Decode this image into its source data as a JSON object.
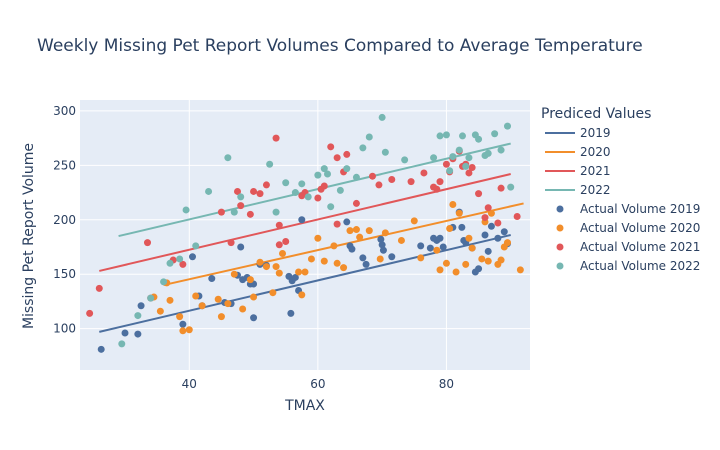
{
  "chart_data": {
    "type": "scatter",
    "title": "Weekly Missing Pet Report Volumes Compared to Average Temperature",
    "xlabel": "TMAX",
    "ylabel": "Missing Pet Report Volume",
    "xlim": [
      23,
      93
    ],
    "ylim": [
      62,
      310
    ],
    "xticks": [
      40,
      60,
      80
    ],
    "yticks": [
      100,
      150,
      200,
      250,
      300
    ],
    "grid": true,
    "legend": {
      "title": "Prediced Values",
      "position": "right"
    },
    "colors": {
      "2019": "#4c6f9f",
      "2020": "#f28e2b",
      "2021": "#e15759",
      "2022": "#76b7b2",
      "plot_bg": "#e5ecf6",
      "grid": "#ffffff",
      "text": "#2a3f5f"
    },
    "series": [
      {
        "name": "2019",
        "kind": "line",
        "color": "#4c6f9f",
        "x": [
          26,
          90
        ],
        "y": [
          97,
          186
        ]
      },
      {
        "name": "2020",
        "kind": "line",
        "color": "#f28e2b",
        "x": [
          36,
          92
        ],
        "y": [
          140,
          215
        ]
      },
      {
        "name": "2021",
        "kind": "line",
        "color": "#e15759",
        "x": [
          26,
          90
        ],
        "y": [
          153,
          242
        ]
      },
      {
        "name": "2022",
        "kind": "line",
        "color": "#76b7b2",
        "x": [
          29,
          90
        ],
        "y": [
          185,
          270
        ]
      },
      {
        "name": "Actual Volume 2019",
        "kind": "markers",
        "color": "#4c6f9f",
        "x": [
          26.3,
          30,
          32,
          32.5,
          39,
          40.5,
          41.5,
          42,
          43.5,
          45.5,
          46.5,
          47.5,
          48,
          48.3,
          49,
          49.5,
          50,
          50,
          51,
          52,
          55.5,
          55.8,
          56,
          56.5,
          57,
          57.5,
          64.5,
          65,
          65.3,
          67,
          67.5,
          69.8,
          70,
          70.2,
          71.5,
          76,
          77.5,
          78,
          78.5,
          79,
          79.5,
          81,
          82,
          82.4,
          82.7,
          83,
          84,
          84.5,
          85,
          86,
          86.5,
          87,
          88,
          89,
          89.5
        ],
        "y": [
          81,
          96,
          95,
          121,
          104,
          166,
          130,
          121,
          146,
          124,
          123,
          149,
          175,
          145,
          147,
          141,
          110,
          141,
          159,
          158,
          148,
          114,
          144,
          147,
          135,
          200,
          198,
          176,
          173,
          165,
          159,
          182,
          177,
          172,
          166,
          176,
          174,
          183,
          181,
          183,
          175,
          193,
          207,
          193,
          181,
          179,
          174,
          152,
          155,
          186,
          171,
          194,
          183,
          189,
          178
        ]
      },
      {
        "name": "Actual Volume 2020",
        "kind": "markers",
        "color": "#f28e2b",
        "x": [
          34.5,
          35.5,
          36.5,
          37,
          38.5,
          39,
          40,
          41,
          42,
          44.5,
          45,
          46,
          47,
          48.3,
          49.5,
          50,
          51,
          52,
          53,
          53.5,
          54,
          54.5,
          57,
          57.5,
          58,
          59,
          60,
          61,
          62.5,
          63,
          64,
          65,
          66,
          66.5,
          68,
          69.7,
          70.5,
          73,
          75,
          76,
          78.5,
          79,
          80,
          80.5,
          81,
          81.5,
          82,
          83,
          83.5,
          84,
          85.5,
          86,
          86.5,
          87,
          88,
          88.5,
          89,
          89.5,
          91.5
        ],
        "y": [
          129,
          116,
          142,
          126,
          111,
          98,
          99,
          130,
          121,
          127,
          111,
          123,
          150,
          118,
          145,
          129,
          161,
          157,
          133,
          157,
          151,
          169,
          152,
          131,
          152,
          164,
          183,
          162,
          176,
          160,
          156,
          190,
          191,
          184,
          190,
          164,
          188,
          181,
          199,
          165,
          172,
          154,
          160,
          192,
          214,
          152,
          206,
          159,
          183,
          174,
          164,
          198,
          162,
          206,
          159,
          163,
          175,
          179,
          154
        ]
      },
      {
        "name": "Actual Volume 2021",
        "kind": "markers",
        "color": "#e15759",
        "x": [
          24.5,
          26,
          33.5,
          34,
          37.5,
          39,
          45,
          46.5,
          47.5,
          48,
          49.5,
          50,
          51,
          52,
          53.5,
          54,
          54,
          55,
          57.5,
          58,
          60,
          60.5,
          61,
          62,
          63,
          63,
          64,
          64.5,
          66,
          68.5,
          69.5,
          71.5,
          74.5,
          76.5,
          78,
          78.5,
          79,
          80,
          80.5,
          81,
          82,
          82.5,
          83,
          83.5,
          84,
          85,
          86,
          86.5,
          88,
          88.5,
          91
        ],
        "y": [
          114,
          137,
          179,
          128,
          163,
          159,
          207,
          179,
          226,
          213,
          205,
          226,
          224,
          232,
          275,
          177,
          195,
          180,
          222,
          225,
          220,
          228,
          231,
          267,
          257,
          196,
          244,
          260,
          215,
          240,
          232,
          237,
          235,
          243,
          230,
          228,
          235,
          251,
          244,
          256,
          263,
          249,
          251,
          243,
          248,
          224,
          202,
          211,
          197,
          229,
          203
        ]
      },
      {
        "name": "Actual Volume 2022",
        "kind": "markers",
        "color": "#76b7b2",
        "x": [
          29.5,
          32,
          34,
          36,
          37,
          38.5,
          39.5,
          41,
          43,
          46,
          47,
          48,
          52.5,
          53.5,
          55,
          56.5,
          57.5,
          58.5,
          60,
          61,
          61.5,
          62,
          63.5,
          64.5,
          66,
          67,
          68,
          70,
          70.5,
          73.5,
          78,
          79,
          80,
          80.5,
          81,
          82,
          82.5,
          83,
          83.5,
          84.5,
          85,
          86,
          86.5,
          87.5,
          88.5,
          89.5,
          90
        ],
        "y": [
          86,
          112,
          128,
          143,
          160,
          164,
          209,
          176,
          226,
          257,
          207,
          221,
          251,
          207,
          234,
          225,
          233,
          221,
          241,
          247,
          242,
          212,
          227,
          247,
          239,
          266,
          276,
          294,
          262,
          255,
          257,
          277,
          278,
          245,
          258,
          264,
          277,
          249,
          257,
          278,
          274,
          259,
          261,
          279,
          264,
          286,
          230
        ]
      }
    ]
  }
}
